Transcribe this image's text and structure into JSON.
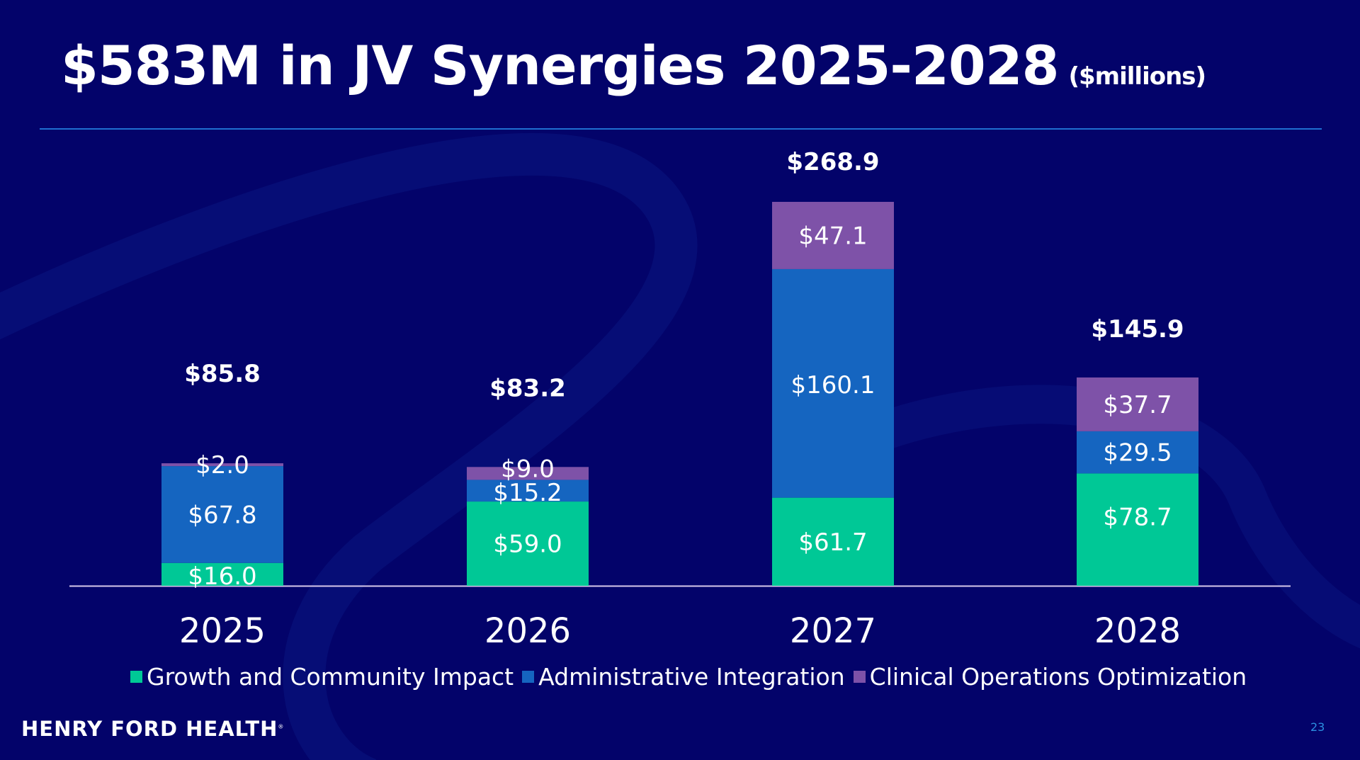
{
  "slide": {
    "title": "$583M in JV Synergies 2025-2028",
    "title_unit": "($millions)",
    "logo_text": "HENRY FORD HEALTH",
    "logo_mark": "®",
    "page_number": "23",
    "colors": {
      "background": "#03036a",
      "divider": "#1f6fd0",
      "growth": "#00c896",
      "admin": "#1565c0",
      "clinical": "#7e52a8",
      "page_number": "#2b8fe0"
    }
  },
  "chart_data": {
    "type": "bar",
    "stacked": true,
    "title": "$583M in JV Synergies 2025-2028",
    "unit": "$ millions",
    "categories": [
      "2025",
      "2026",
      "2027",
      "2028"
    ],
    "series": [
      {
        "name": "Growth and Community Impact",
        "color": "#00c896",
        "values": [
          16.0,
          59.0,
          61.7,
          78.7
        ],
        "labels": [
          "$16.0",
          "$59.0",
          "$61.7",
          "$78.7"
        ]
      },
      {
        "name": "Administrative Integration",
        "color": "#1565c0",
        "values": [
          67.8,
          15.2,
          160.1,
          29.5
        ],
        "labels": [
          "$67.8",
          "$15.2",
          "$160.1",
          "$29.5"
        ]
      },
      {
        "name": "Clinical Operations Optimization",
        "color": "#7e52a8",
        "values": [
          2.0,
          9.0,
          47.1,
          37.7
        ],
        "labels": [
          "$2.0",
          "$9.0",
          "$47.1",
          "$37.7"
        ]
      }
    ],
    "totals": [
      85.8,
      83.2,
      268.9,
      145.9
    ],
    "total_labels": [
      "$85.8",
      "$83.2",
      "$268.9",
      "$145.9"
    ],
    "xlabel": "",
    "ylabel": "",
    "ylim": [
      0,
      268.9
    ],
    "grid": false,
    "legend": "bottom"
  }
}
